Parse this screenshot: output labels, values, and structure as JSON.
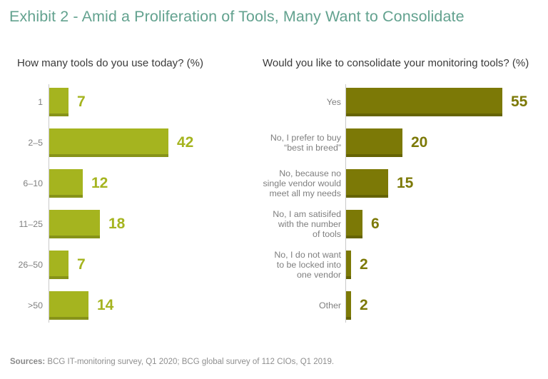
{
  "title": "Exhibit 2 - Amid a Proliferation of Tools, Many Want to Consolidate",
  "colors": {
    "title_green": "#63a28f",
    "left_bar": "#a5b41f",
    "right_bar": "#7c7906",
    "axis_line": "#c9c9c9",
    "category_text": "#7f7f7f"
  },
  "chart_data": [
    {
      "type": "bar",
      "orientation": "horizontal",
      "title": "How many tools do you use today? (%)",
      "unit": "%",
      "xlim": [
        0,
        60
      ],
      "grid": false,
      "legend": false,
      "categories": [
        "1",
        "2–5",
        "6–10",
        "11–25",
        "26–50",
        ">50"
      ],
      "values": [
        7,
        42,
        12,
        18,
        7,
        14
      ]
    },
    {
      "type": "bar",
      "orientation": "horizontal",
      "title": "Would you like to consolidate your monitoring tools? (%)",
      "unit": "%",
      "xlim": [
        0,
        60
      ],
      "grid": false,
      "legend": false,
      "categories": [
        "Yes",
        "No, I prefer to buy\n“best in breed”",
        "No, because no\nsingle vendor would\nmeet all my needs",
        "No, I am satisifed\nwith the number\nof tools",
        "No, I do not want\nto be locked into\none vendor",
        "Other"
      ],
      "values": [
        55,
        20,
        15,
        6,
        2,
        2
      ]
    }
  ],
  "footer": {
    "sources_label": "Sources:",
    "sources_text": " BCG IT-monitoring survey, Q1 2020; BCG global survey of 112 CIOs, Q1 2019."
  }
}
